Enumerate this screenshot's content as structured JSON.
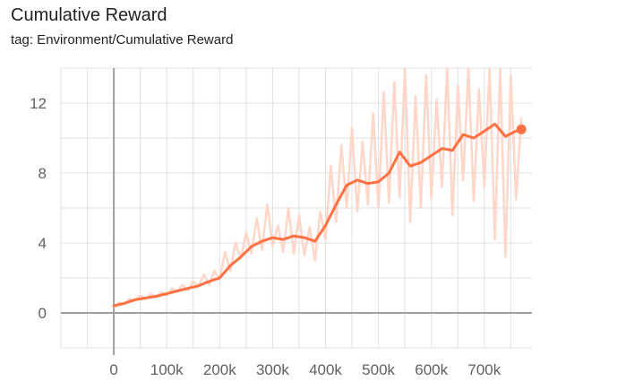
{
  "header": {
    "title": "Cumulative Reward",
    "tag": "tag: Environment/Cumulative Reward"
  },
  "colors": {
    "smoothed_line": "#ff7043",
    "raw_line": "#ffd6c8",
    "grid": "#e0e0e0",
    "zero_axis": "#9e9e9e",
    "tick_text": "#616161"
  },
  "chart_data": {
    "type": "line",
    "title": "Cumulative Reward",
    "xlabel": "",
    "ylabel": "",
    "xlim": [
      -100000,
      790000
    ],
    "ylim": [
      -2,
      14
    ],
    "x_ticks": [
      0,
      100000,
      200000,
      300000,
      400000,
      500000,
      600000,
      700000
    ],
    "x_tick_labels": [
      "0",
      "100k",
      "200k",
      "300k",
      "400k",
      "500k",
      "600k",
      "700k"
    ],
    "y_ticks": [
      0,
      4,
      8,
      12
    ],
    "y_tick_labels": [
      "0",
      "4",
      "8",
      "12"
    ],
    "grid": true,
    "legend": "none",
    "series": [
      {
        "style": "smoothed",
        "x": [
          0,
          20000,
          40000,
          60000,
          80000,
          100000,
          120000,
          140000,
          160000,
          180000,
          200000,
          220000,
          240000,
          260000,
          280000,
          300000,
          320000,
          340000,
          360000,
          380000,
          400000,
          420000,
          440000,
          460000,
          480000,
          500000,
          520000,
          540000,
          560000,
          580000,
          600000,
          620000,
          640000,
          660000,
          680000,
          700000,
          720000,
          740000,
          760000,
          770000
        ],
        "y": [
          0.4,
          0.55,
          0.75,
          0.85,
          0.95,
          1.1,
          1.25,
          1.4,
          1.55,
          1.8,
          2.0,
          2.7,
          3.2,
          3.8,
          4.1,
          4.3,
          4.2,
          4.4,
          4.3,
          4.1,
          5.0,
          6.2,
          7.3,
          7.6,
          7.4,
          7.5,
          8.0,
          9.2,
          8.4,
          8.6,
          9.0,
          9.4,
          9.3,
          10.2,
          10.0,
          10.4,
          10.8,
          10.1,
          10.4,
          10.5
        ]
      },
      {
        "style": "raw",
        "x": [
          0,
          10000,
          20000,
          30000,
          40000,
          50000,
          60000,
          70000,
          80000,
          90000,
          100000,
          110000,
          120000,
          130000,
          140000,
          150000,
          160000,
          170000,
          180000,
          190000,
          200000,
          210000,
          220000,
          230000,
          240000,
          250000,
          260000,
          270000,
          280000,
          290000,
          300000,
          310000,
          320000,
          330000,
          340000,
          350000,
          360000,
          370000,
          380000,
          390000,
          400000,
          410000,
          420000,
          430000,
          440000,
          450000,
          460000,
          470000,
          480000,
          490000,
          500000,
          510000,
          520000,
          530000,
          540000,
          550000,
          560000,
          570000,
          580000,
          590000,
          600000,
          610000,
          620000,
          630000,
          640000,
          650000,
          660000,
          670000,
          680000,
          690000,
          700000,
          710000,
          720000,
          730000,
          740000,
          750000,
          760000,
          770000
        ],
        "y": [
          0.3,
          0.6,
          0.5,
          0.8,
          0.7,
          1.0,
          0.8,
          1.1,
          0.9,
          1.2,
          1.0,
          1.4,
          1.2,
          1.6,
          1.3,
          1.8,
          1.5,
          2.2,
          1.6,
          2.4,
          1.9,
          3.5,
          2.4,
          4.0,
          3.1,
          4.6,
          3.4,
          5.4,
          3.6,
          6.2,
          3.8,
          5.0,
          3.5,
          6.0,
          3.4,
          5.6,
          3.3,
          4.9,
          3.0,
          5.8,
          4.2,
          8.4,
          5.2,
          9.6,
          6.0,
          10.6,
          5.8,
          9.8,
          6.2,
          11.4,
          6.0,
          12.6,
          6.3,
          13.2,
          6.6,
          14.0,
          5.2,
          12.4,
          6.0,
          13.6,
          6.5,
          12.2,
          7.2,
          14.0,
          5.6,
          13.0,
          7.6,
          14.0,
          6.4,
          12.8,
          7.2,
          14.0,
          4.2,
          14.0,
          3.2,
          13.6,
          6.5,
          11.2
        ]
      }
    ],
    "end_marker": {
      "x": 770000,
      "y": 10.5
    }
  }
}
